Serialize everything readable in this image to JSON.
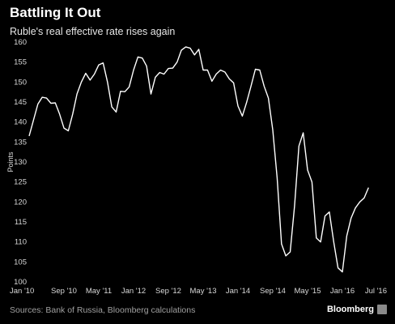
{
  "header": {
    "title": "Battling It Out",
    "subtitle": "Ruble's real effective rate rises again"
  },
  "footer": {
    "source": "Sources: Bank of Russia, Bloomberg calculations",
    "brand": "Bloomberg"
  },
  "chart_data": {
    "type": "line",
    "title": "Battling It Out",
    "subtitle": "Ruble's real effective rate rises again",
    "ylabel": "Points",
    "xlabel": "",
    "ylim": [
      100,
      160
    ],
    "yticks": [
      100,
      105,
      110,
      115,
      120,
      125,
      130,
      135,
      140,
      145,
      150,
      155,
      160
    ],
    "xlim": [
      "2010-01",
      "2016-09"
    ],
    "xticks": [
      {
        "label": "Jan '10",
        "date": "2010-01"
      },
      {
        "label": "Sep '10",
        "date": "2010-09"
      },
      {
        "label": "May '11",
        "date": "2011-05"
      },
      {
        "label": "Jan '12",
        "date": "2012-01"
      },
      {
        "label": "Sep '12",
        "date": "2012-09"
      },
      {
        "label": "May '13",
        "date": "2013-05"
      },
      {
        "label": "Jan '14",
        "date": "2014-01"
      },
      {
        "label": "Sep '14",
        "date": "2014-09"
      },
      {
        "label": "May '15",
        "date": "2015-05"
      },
      {
        "label": "Jan '16",
        "date": "2016-01"
      },
      {
        "label": "Jul '16",
        "date": "2016-07"
      }
    ],
    "grid": false,
    "line_color": "#ffffff",
    "series": [
      {
        "x": [
          "2010-01",
          "2010-02",
          "2010-03",
          "2010-04",
          "2010-05",
          "2010-06",
          "2010-07",
          "2010-08",
          "2010-09",
          "2010-10",
          "2010-11",
          "2010-12",
          "2011-01",
          "2011-02",
          "2011-03",
          "2011-04",
          "2011-05",
          "2011-06",
          "2011-07",
          "2011-08",
          "2011-09",
          "2011-10",
          "2011-11",
          "2011-12",
          "2012-01",
          "2012-02",
          "2012-03",
          "2012-04",
          "2012-05",
          "2012-06",
          "2012-07",
          "2012-08",
          "2012-09",
          "2012-10",
          "2012-11",
          "2012-12",
          "2013-01",
          "2013-02",
          "2013-03",
          "2013-04",
          "2013-05",
          "2013-06",
          "2013-07",
          "2013-08",
          "2013-09",
          "2013-10",
          "2013-11",
          "2013-12",
          "2014-01",
          "2014-02",
          "2014-03",
          "2014-04",
          "2014-05",
          "2014-06",
          "2014-07",
          "2014-08",
          "2014-09",
          "2014-10",
          "2014-11",
          "2014-12",
          "2015-01",
          "2015-02",
          "2015-03",
          "2015-04",
          "2015-05",
          "2015-06",
          "2015-07",
          "2015-08",
          "2015-09",
          "2015-10",
          "2015-11",
          "2015-12",
          "2016-01",
          "2016-02",
          "2016-03",
          "2016-04",
          "2016-05",
          "2016-06",
          "2016-07"
        ],
        "y": [
          136.5,
          140.5,
          144.5,
          146.2,
          146.0,
          144.7,
          144.8,
          142.0,
          138.5,
          137.8,
          142.0,
          147.0,
          150.0,
          152.2,
          150.5,
          152.0,
          154.3,
          154.8,
          150.0,
          143.8,
          142.5,
          147.7,
          147.6,
          148.8,
          153.0,
          156.3,
          156.0,
          154.0,
          147.0,
          151.2,
          152.4,
          152.0,
          153.4,
          153.5,
          155.0,
          158.0,
          158.8,
          158.5,
          156.8,
          158.2,
          153.0,
          153.0,
          150.2,
          152.0,
          153.0,
          152.5,
          150.8,
          149.8,
          144.0,
          141.5,
          145.0,
          149.0,
          153.2,
          153.0,
          149.0,
          146.0,
          138.0,
          126.0,
          109.5,
          106.5,
          107.5,
          119.0,
          134.0,
          137.3,
          128.0,
          125.0,
          111.0,
          110.0,
          116.5,
          117.5,
          110.0,
          103.5,
          102.5,
          111.5,
          116.0,
          118.5,
          120.0,
          121.0,
          123.6
        ]
      }
    ]
  }
}
